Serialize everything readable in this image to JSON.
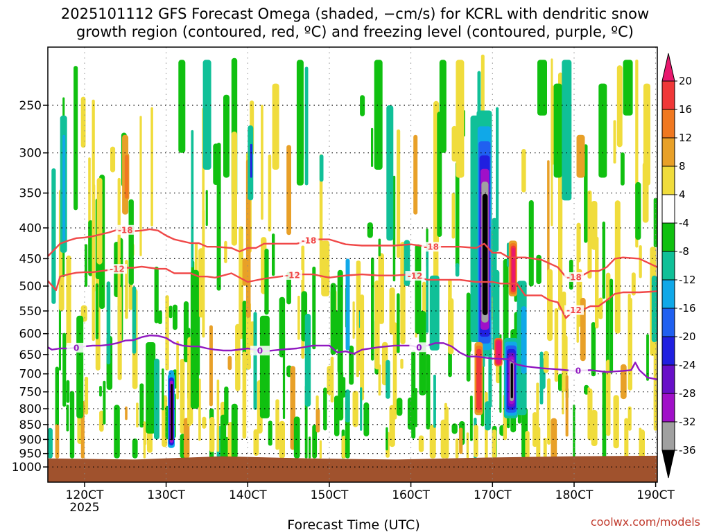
{
  "chart_data": {
    "type": "heatmap",
    "title_lines": [
      "2025101112 GFS Forecast Omega (shaded, −cm/s) for KCRL with dendritic snow",
      "growth region (contoured, red, ºC) and freezing level (contoured, purple, ºC)"
    ],
    "xlabel": "Forecast Time (UTC)",
    "x_axis": {
      "unit": "hours",
      "range": [
        115.5,
        190.2
      ],
      "ticks": [
        {
          "value": 120,
          "label": "120CT",
          "sublabel": "2025"
        },
        {
          "value": 130,
          "label": "130CT"
        },
        {
          "value": 140,
          "label": "140CT"
        },
        {
          "value": 150,
          "label": "150CT"
        },
        {
          "value": 160,
          "label": "160CT"
        },
        {
          "value": 170,
          "label": "170CT"
        },
        {
          "value": 180,
          "label": "180CT"
        },
        {
          "value": 190,
          "label": "190CT"
        }
      ]
    },
    "y_axis": {
      "unit": "hPa",
      "scale": "log",
      "range": [
        200,
        1060
      ],
      "ticks": [
        250,
        300,
        350,
        400,
        450,
        500,
        550,
        600,
        650,
        700,
        750,
        800,
        850,
        900,
        950,
        1000
      ]
    },
    "colorbar": {
      "labels": [
        "20",
        "16",
        "12",
        "8",
        "4",
        "-4",
        "-8",
        "-12",
        "-16",
        "-20",
        "-24",
        "-28",
        "-32",
        "-36"
      ],
      "bins": [
        {
          "min": 20,
          "color": "#e8186e"
        },
        {
          "min": 16,
          "max": 20,
          "color": "#f03838"
        },
        {
          "min": 12,
          "max": 16,
          "color": "#f07820"
        },
        {
          "min": 8,
          "max": 12,
          "color": "#e8a028"
        },
        {
          "min": 4,
          "max": 8,
          "color": "#f0dc3c"
        },
        {
          "min": -4,
          "max": 4,
          "color": "#ffffff"
        },
        {
          "min": -8,
          "max": -4,
          "color": "#10c010"
        },
        {
          "min": -12,
          "max": -8,
          "color": "#10c098"
        },
        {
          "min": -16,
          "max": -12,
          "color": "#10a8e8"
        },
        {
          "min": -20,
          "max": -16,
          "color": "#2060f0"
        },
        {
          "min": -24,
          "max": -20,
          "color": "#2020e0"
        },
        {
          "min": -28,
          "max": -24,
          "color": "#6810c8"
        },
        {
          "min": -32,
          "max": -28,
          "color": "#a010c8"
        },
        {
          "min": -36,
          "max": -32,
          "color": "#a0a0a0"
        },
        {
          "max": -36,
          "color": "#000000"
        }
      ]
    },
    "omega_features": [
      {
        "t": [
          168.5,
          169.0
        ],
        "p": [
          265,
          600
        ],
        "max_level": "-36",
        "note": "strongest ascent core"
      },
      {
        "t": [
          171.8,
          172.4
        ],
        "p": [
          690,
          820
        ],
        "max_level": "-36"
      },
      {
        "t": [
          130.4,
          130.8
        ],
        "p": [
          740,
          900
        ],
        "max_level": "-36"
      },
      {
        "t": [
          170.2,
          170.6
        ],
        "p": [
          610,
          670
        ],
        "max_level": "16"
      },
      {
        "t": [
          172.0,
          172.6
        ],
        "p": [
          420,
          520
        ],
        "max_level": "16"
      },
      {
        "t": [
          124.5,
          125.5
        ],
        "p": [
          300,
          360
        ],
        "max_level": "12"
      },
      {
        "t": [
          180.0,
          181.2
        ],
        "p": [
          280,
          330
        ],
        "max_level": "8"
      },
      {
        "t": [
          140.0,
          140.5
        ],
        "p": [
          290,
          340
        ],
        "max_level": "-20"
      }
    ],
    "series": [
      {
        "name": "-18 ºC isotherm",
        "color": "#f04848",
        "label": "-18",
        "x": [
          115.5,
          117,
          118,
          119,
          120,
          121,
          122,
          123,
          124,
          125,
          126,
          127,
          128,
          129,
          130,
          131,
          132,
          133,
          134,
          135,
          136,
          138,
          139,
          140,
          141,
          142,
          144,
          146,
          148,
          150,
          152,
          154,
          156,
          158,
          160,
          162,
          164,
          166,
          168,
          169,
          170,
          171,
          172,
          174,
          176,
          178,
          179,
          180,
          181,
          182,
          183,
          184,
          185,
          186,
          188,
          190.2
        ],
        "y": [
          446,
          425,
          420,
          416,
          415,
          413,
          410,
          407,
          403,
          403,
          405,
          404,
          402,
          404,
          412,
          418,
          421,
          424,
          424,
          430,
          430,
          432,
          438,
          432,
          432,
          425,
          425,
          425,
          418,
          418,
          426,
          428,
          428,
          428,
          426,
          430,
          430,
          430,
          432,
          425,
          440,
          440,
          448,
          448,
          452,
          465,
          483,
          483,
          480,
          472,
          472,
          465,
          450,
          448,
          450,
          465
        ],
        "labels_at": [
          125,
          147.5,
          162.5,
          180
        ]
      },
      {
        "name": "-12 ºC isotherm",
        "color": "#f04848",
        "label": "-12",
        "x": [
          115.5,
          116.5,
          117,
          118,
          119,
          120,
          121,
          122,
          123,
          124,
          125,
          126,
          127,
          128,
          129,
          130,
          131,
          132,
          133,
          134,
          135,
          136,
          138,
          140,
          142,
          144,
          146,
          148,
          150,
          152,
          154,
          156,
          158,
          160,
          162,
          164,
          166,
          168,
          170,
          171,
          172,
          173,
          174,
          176,
          177,
          178,
          179,
          180,
          181,
          182,
          183,
          184,
          185,
          186,
          187,
          188,
          190.2
        ],
        "y": [
          490,
          508,
          482,
          478,
          475,
          474,
          474,
          472,
          470,
          468,
          466,
          466,
          464,
          466,
          468,
          468,
          476,
          476,
          476,
          482,
          482,
          484,
          476,
          492,
          486,
          482,
          478,
          478,
          484,
          480,
          478,
          480,
          480,
          478,
          488,
          488,
          488,
          492,
          492,
          495,
          495,
          495,
          518,
          518,
          528,
          532,
          565,
          548,
          548,
          540,
          540,
          528,
          515,
          512,
          512,
          512,
          510
        ],
        "labels_at": [
          124,
          145.5,
          160.5,
          180
        ]
      },
      {
        "name": "0 ºC freezing level",
        "color": "#9018c0",
        "label": "0",
        "x": [
          115.5,
          116,
          117,
          118,
          119,
          120,
          121,
          122,
          123,
          124,
          125,
          126,
          127,
          128,
          129,
          130,
          131,
          132,
          133,
          134,
          135,
          136,
          137,
          138,
          140,
          142,
          144,
          146,
          148,
          150,
          151,
          152,
          153,
          154,
          156,
          158,
          160,
          161,
          162,
          163,
          164,
          165,
          166,
          167,
          168,
          170,
          172,
          173,
          174,
          176,
          178,
          180,
          182,
          184,
          186,
          187,
          187.5,
          188,
          189,
          190.2
        ],
        "y": [
          632,
          638,
          635,
          635,
          633,
          630,
          628,
          628,
          626,
          622,
          616,
          615,
          608,
          604,
          605,
          610,
          622,
          628,
          630,
          630,
          635,
          638,
          640,
          640,
          635,
          642,
          638,
          635,
          628,
          628,
          645,
          642,
          648,
          638,
          632,
          628,
          628,
          632,
          628,
          622,
          622,
          630,
          645,
          655,
          655,
          660,
          662,
          675,
          680,
          685,
          688,
          692,
          690,
          695,
          692,
          690,
          670,
          690,
          710,
          715
        ],
        "labels_at": [
          119,
          141.5,
          161,
          180.5
        ]
      }
    ],
    "terrain": {
      "color": "#a0522d",
      "surface_p": [
        968,
        972,
        960,
        968,
        972,
        965,
        960,
        958
      ]
    }
  },
  "credit": "coolwx.com/models"
}
